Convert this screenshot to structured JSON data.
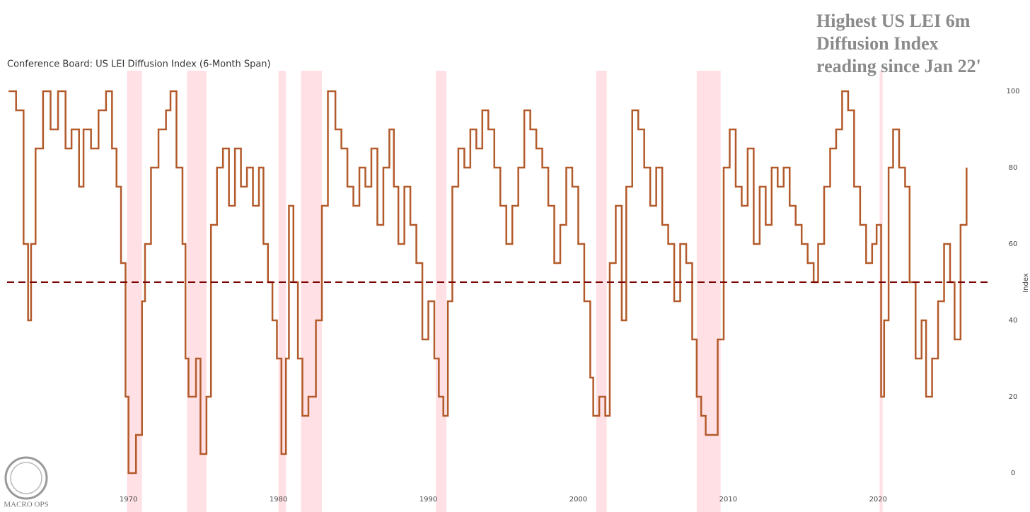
{
  "chart_data": {
    "type": "line",
    "title": "Conference Board: US LEI Diffusion Index (6-Month Span)",
    "annotation": [
      "Highest US LEI 6m",
      "Diffusion Index",
      "reading since Jan 22'"
    ],
    "logo": "MACRO OPS",
    "y_axis_label": "Index",
    "xlim": [
      1961.9,
      2027.3
    ],
    "ylim": [
      -5,
      105
    ],
    "xticks": [
      1970,
      1980,
      1990,
      2000,
      2010,
      2020
    ],
    "yticks": [
      0,
      20,
      40,
      60,
      80,
      100
    ],
    "reference_line": 50,
    "recessions": [
      [
        1969.9,
        1970.9
      ],
      [
        1973.9,
        1975.2
      ],
      [
        1980.0,
        1980.5
      ],
      [
        1981.5,
        1982.9
      ],
      [
        1990.5,
        1991.2
      ],
      [
        2001.2,
        2001.9
      ],
      [
        2007.9,
        2009.5
      ],
      [
        2020.1,
        2020.3
      ]
    ],
    "series": [
      {
        "name": "US LEI Diffusion Index (6-Month Span)",
        "color": "#b35a2a",
        "x": [
          1962.0,
          1962.5,
          1963.0,
          1963.3,
          1963.5,
          1963.8,
          1964.3,
          1964.8,
          1965.3,
          1965.8,
          1966.2,
          1966.7,
          1967.0,
          1967.5,
          1968.0,
          1968.5,
          1968.9,
          1969.2,
          1969.5,
          1969.8,
          1970.0,
          1970.5,
          1970.9,
          1971.1,
          1971.5,
          1972.0,
          1972.5,
          1972.8,
          1973.2,
          1973.6,
          1973.8,
          1974.0,
          1974.5,
          1974.8,
          1975.2,
          1975.5,
          1975.9,
          1976.3,
          1976.7,
          1977.1,
          1977.5,
          1977.9,
          1978.3,
          1978.7,
          1979.0,
          1979.3,
          1979.6,
          1979.9,
          1980.2,
          1980.5,
          1980.7,
          1981.0,
          1981.3,
          1981.6,
          1982.0,
          1982.5,
          1982.9,
          1983.3,
          1983.8,
          1984.2,
          1984.6,
          1985.0,
          1985.4,
          1985.8,
          1986.2,
          1986.6,
          1987.0,
          1987.4,
          1987.7,
          1988.0,
          1988.4,
          1988.8,
          1989.2,
          1989.6,
          1990.0,
          1990.4,
          1990.7,
          1991.0,
          1991.3,
          1991.6,
          1992.0,
          1992.4,
          1992.8,
          1993.2,
          1993.6,
          1994.0,
          1994.4,
          1994.8,
          1995.2,
          1995.6,
          1996.0,
          1996.4,
          1996.8,
          1997.2,
          1997.6,
          1998.0,
          1998.4,
          1998.8,
          1999.2,
          1999.6,
          2000.0,
          2000.4,
          2000.8,
          2001.0,
          2001.4,
          2001.8,
          2002.1,
          2002.5,
          2002.9,
          2003.2,
          2003.6,
          2004.0,
          2004.4,
          2004.8,
          2005.2,
          2005.6,
          2006.0,
          2006.4,
          2006.8,
          2007.2,
          2007.6,
          2007.9,
          2008.2,
          2008.5,
          2009.3,
          2009.7,
          2010.1,
          2010.5,
          2010.9,
          2011.3,
          2011.7,
          2012.1,
          2012.5,
          2012.9,
          2013.3,
          2013.7,
          2014.1,
          2014.5,
          2014.9,
          2015.3,
          2015.7,
          2016.0,
          2016.4,
          2016.8,
          2017.2,
          2017.6,
          2018.0,
          2018.4,
          2018.8,
          2019.2,
          2019.6,
          2019.9,
          2020.2,
          2020.4,
          2020.7,
          2021.0,
          2021.4,
          2021.8,
          2022.1,
          2022.5,
          2022.9,
          2023.2,
          2023.6,
          2024.0,
          2024.4,
          2024.8,
          2025.1,
          2025.5,
          2025.9
        ],
        "values": [
          100,
          95,
          60,
          40,
          60,
          85,
          100,
          90,
          100,
          85,
          90,
          75,
          90,
          85,
          95,
          100,
          85,
          75,
          55,
          20,
          0,
          10,
          45,
          60,
          80,
          90,
          95,
          100,
          80,
          60,
          30,
          20,
          30,
          5,
          20,
          65,
          80,
          85,
          70,
          85,
          75,
          80,
          70,
          80,
          60,
          50,
          40,
          30,
          5,
          30,
          70,
          50,
          30,
          15,
          20,
          40,
          70,
          100,
          90,
          85,
          75,
          70,
          80,
          75,
          85,
          65,
          80,
          90,
          75,
          60,
          75,
          65,
          55,
          35,
          45,
          30,
          20,
          15,
          45,
          75,
          85,
          80,
          90,
          85,
          95,
          90,
          80,
          70,
          60,
          70,
          80,
          95,
          90,
          85,
          80,
          70,
          55,
          65,
          80,
          75,
          60,
          45,
          25,
          15,
          20,
          15,
          55,
          70,
          40,
          75,
          95,
          90,
          80,
          70,
          80,
          65,
          60,
          45,
          60,
          55,
          35,
          20,
          15,
          10,
          35,
          80,
          90,
          75,
          70,
          85,
          60,
          75,
          65,
          80,
          75,
          80,
          70,
          65,
          60,
          55,
          50,
          60,
          75,
          85,
          90,
          100,
          95,
          75,
          65,
          55,
          60,
          65,
          20,
          40,
          80,
          90,
          80,
          75,
          50,
          30,
          40,
          20,
          30,
          45,
          60,
          50,
          35,
          65,
          80
        ]
      }
    ]
  }
}
